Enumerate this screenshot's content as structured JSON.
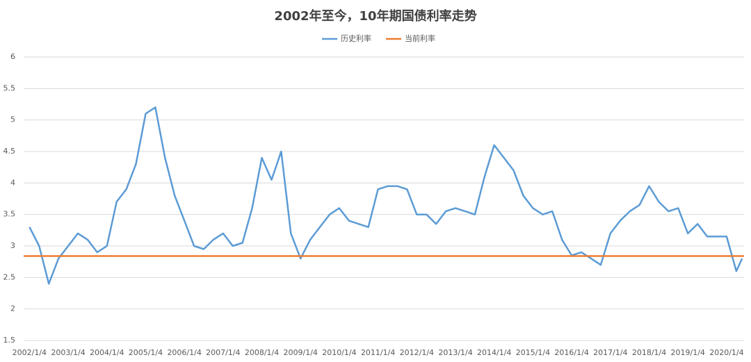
{
  "chart_data": {
    "type": "line",
    "title": "2002年至今，10年期国债利率走势",
    "x": [
      2002,
      2002.25,
      2002.5,
      2002.75,
      2003,
      2003.25,
      2003.5,
      2003.75,
      2004,
      2004.25,
      2004.5,
      2004.75,
      2005,
      2005.25,
      2005.5,
      2005.75,
      2006,
      2006.25,
      2006.5,
      2006.75,
      2007,
      2007.25,
      2007.5,
      2007.75,
      2008,
      2008.25,
      2008.5,
      2008.75,
      2009,
      2009.25,
      2009.5,
      2009.75,
      2010,
      2010.25,
      2010.5,
      2010.75,
      2011,
      2011.25,
      2011.5,
      2011.75,
      2012,
      2012.25,
      2012.5,
      2012.75,
      2013,
      2013.25,
      2013.5,
      2013.75,
      2014,
      2014.25,
      2014.5,
      2014.75,
      2015,
      2015.25,
      2015.5,
      2015.75,
      2016,
      2016.25,
      2016.5,
      2016.75,
      2017,
      2017.25,
      2017.5,
      2017.75,
      2018,
      2018.25,
      2018.5,
      2018.75,
      2019,
      2019.25,
      2019.5,
      2019.75,
      2020,
      2020.25,
      2020.4
    ],
    "series": [
      {
        "name": "历史利率",
        "color": "#5b9bd5",
        "values": [
          3.3,
          3.0,
          2.4,
          2.8,
          3.0,
          3.2,
          3.1,
          2.9,
          3.0,
          3.7,
          3.9,
          4.3,
          5.1,
          5.2,
          4.4,
          3.8,
          3.4,
          3.0,
          2.95,
          3.1,
          3.2,
          3.0,
          3.05,
          3.6,
          4.4,
          4.05,
          4.5,
          3.2,
          2.8,
          3.1,
          3.3,
          3.5,
          3.6,
          3.4,
          3.35,
          3.3,
          3.9,
          3.95,
          3.95,
          3.9,
          3.5,
          3.5,
          3.35,
          3.55,
          3.6,
          3.55,
          3.5,
          4.1,
          4.6,
          4.4,
          4.2,
          3.8,
          3.6,
          3.5,
          3.55,
          3.1,
          2.85,
          2.9,
          2.8,
          2.7,
          3.2,
          3.4,
          3.55,
          3.65,
          3.95,
          3.7,
          3.55,
          3.6,
          3.2,
          3.35,
          3.15,
          3.15,
          3.15,
          2.6,
          2.8
        ]
      }
    ],
    "hlines": [
      {
        "name": "当前利率",
        "color": "#ed7d31",
        "value": 2.84
      }
    ],
    "xlim": [
      2001.85,
      2020.45
    ],
    "xticks": [
      {
        "value": 2002,
        "label": "2002/1/4"
      },
      {
        "value": 2003,
        "label": "2003/1/4"
      },
      {
        "value": 2004,
        "label": "2004/1/4"
      },
      {
        "value": 2005,
        "label": "2005/1/4"
      },
      {
        "value": 2006,
        "label": "2006/1/4"
      },
      {
        "value": 2007,
        "label": "2007/1/4"
      },
      {
        "value": 2008,
        "label": "2008/1/4"
      },
      {
        "value": 2009,
        "label": "2009/1/4"
      },
      {
        "value": 2010,
        "label": "2010/1/4"
      },
      {
        "value": 2011,
        "label": "2011/1/4"
      },
      {
        "value": 2012,
        "label": "2012/1/4"
      },
      {
        "value": 2013,
        "label": "2013/1/4"
      },
      {
        "value": 2014,
        "label": "2014/1/4"
      },
      {
        "value": 2015,
        "label": "2015/1/4"
      },
      {
        "value": 2016,
        "label": "2016/1/4"
      },
      {
        "value": 2017,
        "label": "2017/1/4"
      },
      {
        "value": 2018,
        "label": "2018/1/4"
      },
      {
        "value": 2019,
        "label": "2019/1/4"
      },
      {
        "value": 2020,
        "label": "2020/1/4"
      }
    ],
    "ylim": [
      1.5,
      6
    ],
    "yticks": [
      1.5,
      2,
      2.5,
      3,
      3.5,
      4,
      4.5,
      5,
      5.5,
      6
    ],
    "grid": true
  }
}
